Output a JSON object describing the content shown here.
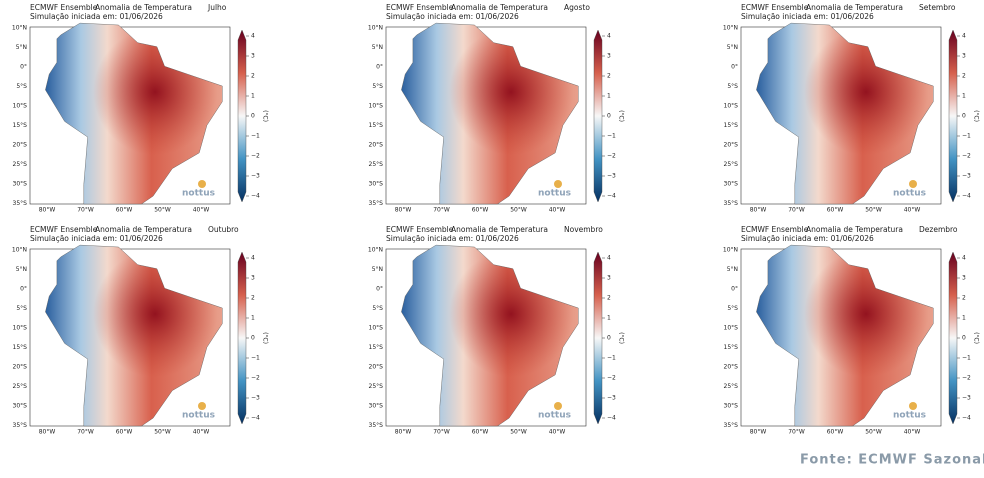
{
  "axes": {
    "lat_labels": [
      "10°N",
      "5°N",
      "0°",
      "5°S",
      "10°S",
      "15°S",
      "20°S",
      "25°S",
      "30°S",
      "35°S"
    ],
    "lon_labels": [
      "80°W",
      "70°W",
      "60°W",
      "50°W",
      "40°W"
    ],
    "colorbar_ticks": [
      "4",
      "3",
      "2",
      "1",
      "0",
      "−1",
      "−2",
      "−3",
      "−4"
    ],
    "colorbar_unit": "(°C)",
    "logo": "nottus"
  },
  "panels": [
    {
      "model": "ECMWF Ensemble",
      "title": "Anomalia de Temperatura",
      "month": "Julho",
      "simulation": "Simulação iniciada em: 01/06/2026"
    },
    {
      "model": "ECMWF Ensemble",
      "title": "Anomalia de Temperatura",
      "month": "Agosto",
      "simulation": "Simulação iniciada em: 01/06/2026"
    },
    {
      "model": "ECMWF Ensemble",
      "title": "Anomalia de Temperatura",
      "month": "Setembro",
      "simulation": "Simulação iniciada em: 01/06/2026"
    },
    {
      "model": "ECMWF Ensemble",
      "title": "Anomalia de Temperatura",
      "month": "Outubro",
      "simulation": "Simulação iniciada em: 01/06/2026"
    },
    {
      "model": "ECMWF Ensemble",
      "title": "Anomalia de Temperatura",
      "month": "Novembro",
      "simulation": "Simulação iniciada em: 01/06/2026"
    },
    {
      "model": "ECMWF Ensemble",
      "title": "Anomalia de Temperatura",
      "month": "Dezembro",
      "simulation": "Simulação iniciada em: 01/06/2026"
    }
  ],
  "footer": "Fonte: ECMWF  Sazonal)"
}
